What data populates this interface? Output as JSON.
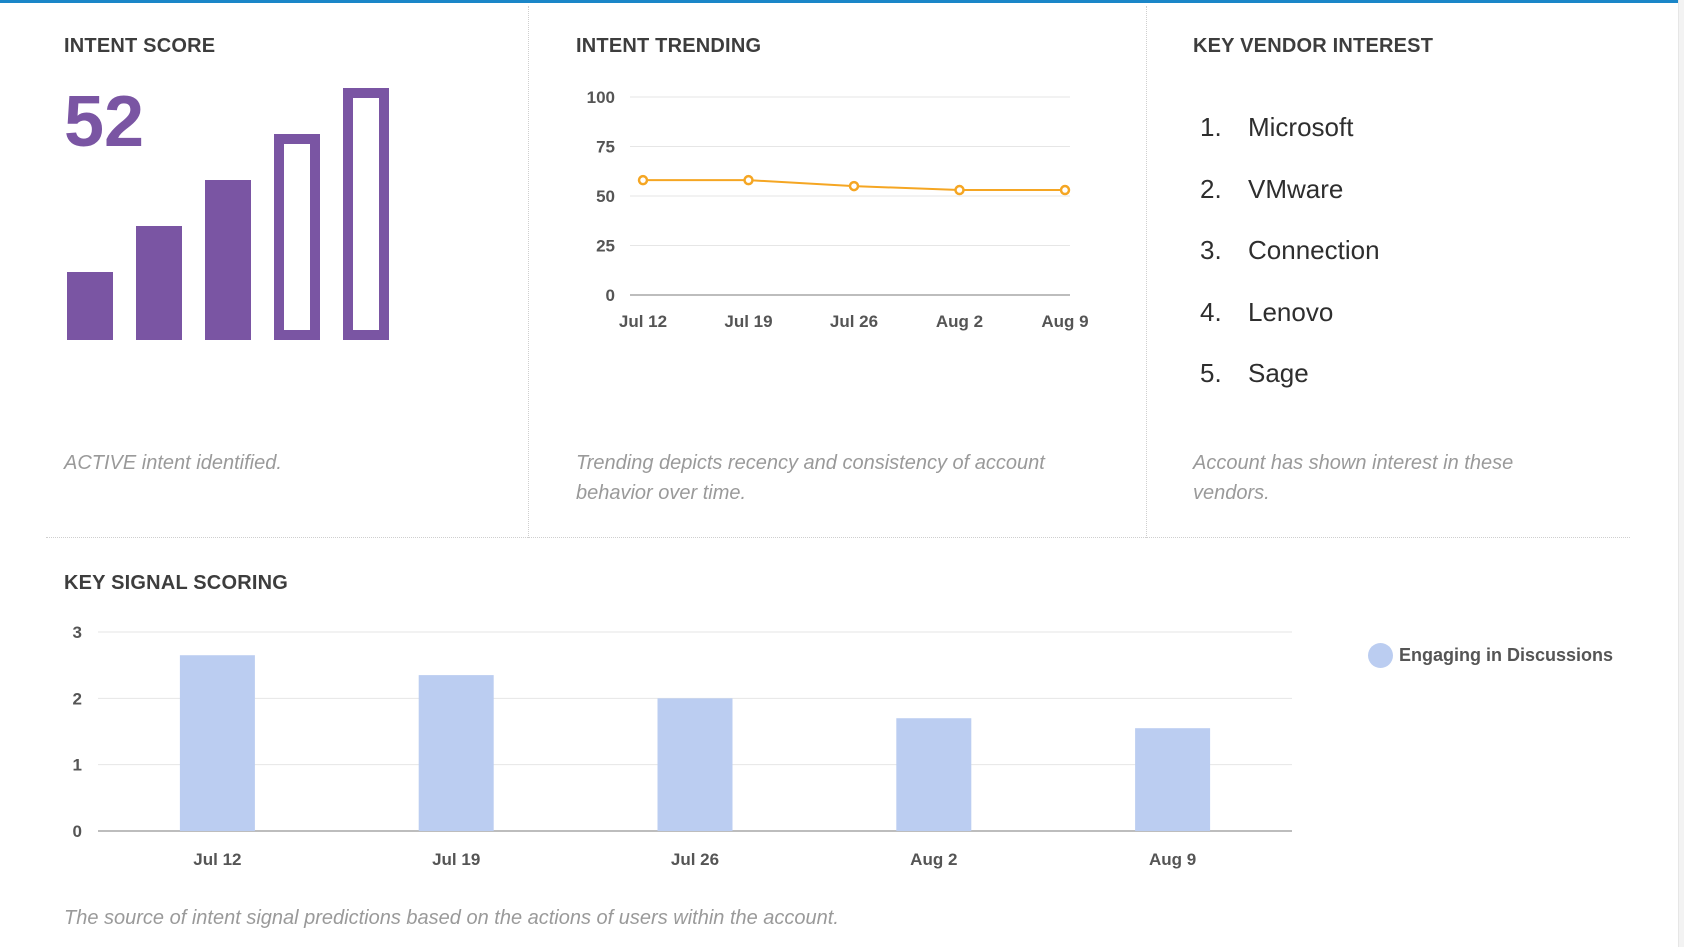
{
  "intent_score": {
    "title": "INTENT SCORE",
    "score": "52",
    "description": "ACTIVE intent identified.",
    "bars_filled": 3,
    "bars_total": 5,
    "color": "#7a55a3"
  },
  "intent_trending": {
    "title": "INTENT TRENDING",
    "description": "Trending depicts recency and consistency of account behavior over time."
  },
  "key_vendor_interest": {
    "title": "KEY VENDOR INTEREST",
    "vendors": [
      {
        "num": "1.",
        "name": "Microsoft"
      },
      {
        "num": "2.",
        "name": "VMware"
      },
      {
        "num": "3.",
        "name": "Connection"
      },
      {
        "num": "4.",
        "name": "Lenovo"
      },
      {
        "num": "5.",
        "name": "Sage"
      }
    ],
    "description": "Account has shown interest in these vendors."
  },
  "key_signal_scoring": {
    "title": "KEY SIGNAL SCORING",
    "description": "The source of intent signal predictions based on the actions of users within the account."
  },
  "chart_data": [
    {
      "type": "line",
      "title": "INTENT TRENDING",
      "x": [
        "Jul 12",
        "Jul 19",
        "Jul 26",
        "Aug 2",
        "Aug 9"
      ],
      "series": [
        {
          "values": [
            58,
            58,
            55,
            53,
            53
          ],
          "color": "#f5a623"
        }
      ],
      "ylim": [
        0,
        100
      ],
      "yticks": [
        0,
        25,
        50,
        75,
        100
      ],
      "grid": true
    },
    {
      "type": "bar",
      "title": "KEY SIGNAL SCORING",
      "categories": [
        "Jul 12",
        "Jul 19",
        "Jul 26",
        "Aug 2",
        "Aug 9"
      ],
      "series": [
        {
          "name": "Engaging in Discussions",
          "values": [
            2.65,
            2.35,
            2.0,
            1.7,
            1.55
          ],
          "color": "#bbcdf1"
        }
      ],
      "ylim": [
        0,
        3
      ],
      "yticks": [
        0,
        1,
        2,
        3
      ],
      "grid": true,
      "legend": "right"
    }
  ]
}
